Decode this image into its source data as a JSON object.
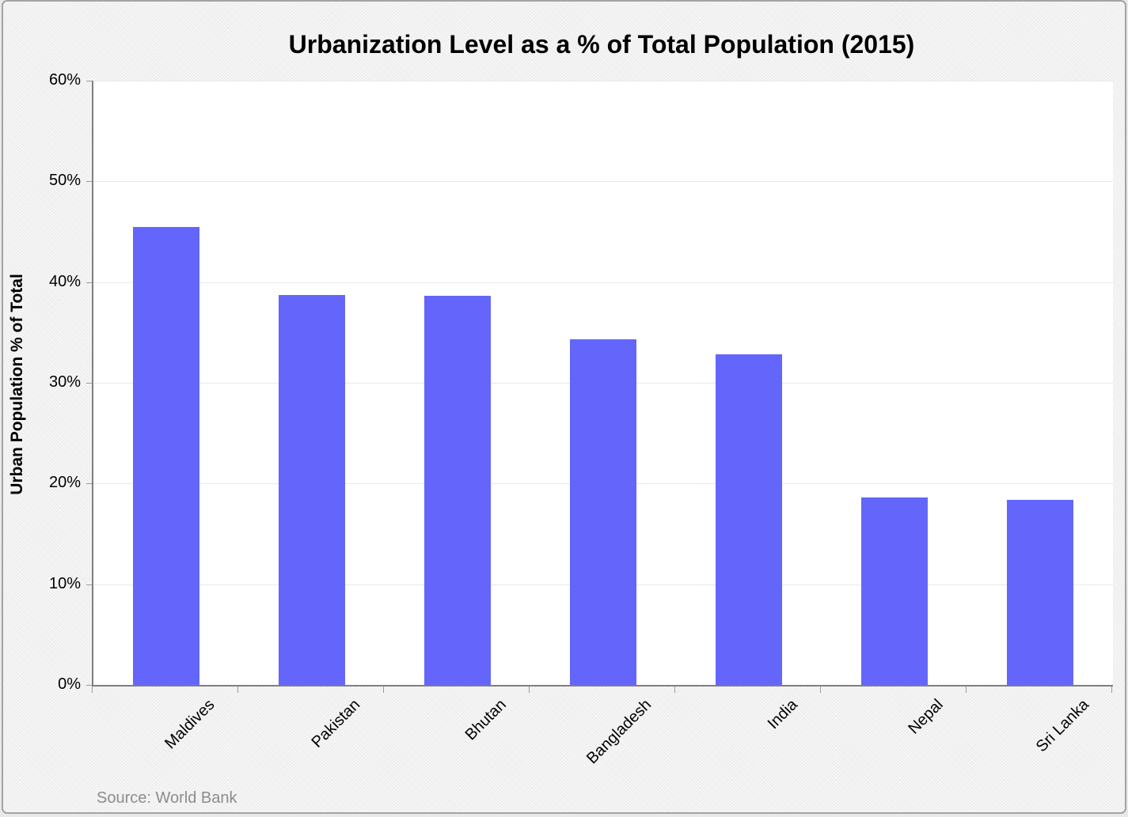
{
  "chart_data": {
    "type": "bar",
    "title": "Urbanization Level as a % of Total Population (2015)",
    "categories": [
      "Maldives",
      "Pakistan",
      "Bhutan",
      "Bangladesh",
      "India",
      "Nepal",
      "Sri Lanka"
    ],
    "values": [
      45.5,
      38.7,
      38.6,
      34.3,
      32.8,
      18.6,
      18.4
    ],
    "xlabel": "",
    "ylabel": "Urban Population % of Total",
    "ylim": [
      0,
      60
    ],
    "ytick_step": 10,
    "ytick_suffix": "%",
    "grid": true,
    "legend_position": "none",
    "bar_color": "#6466fb",
    "background_color": "#f2f2f2",
    "plot_background_color": "#ffffff",
    "source": "Source: World Bank"
  }
}
